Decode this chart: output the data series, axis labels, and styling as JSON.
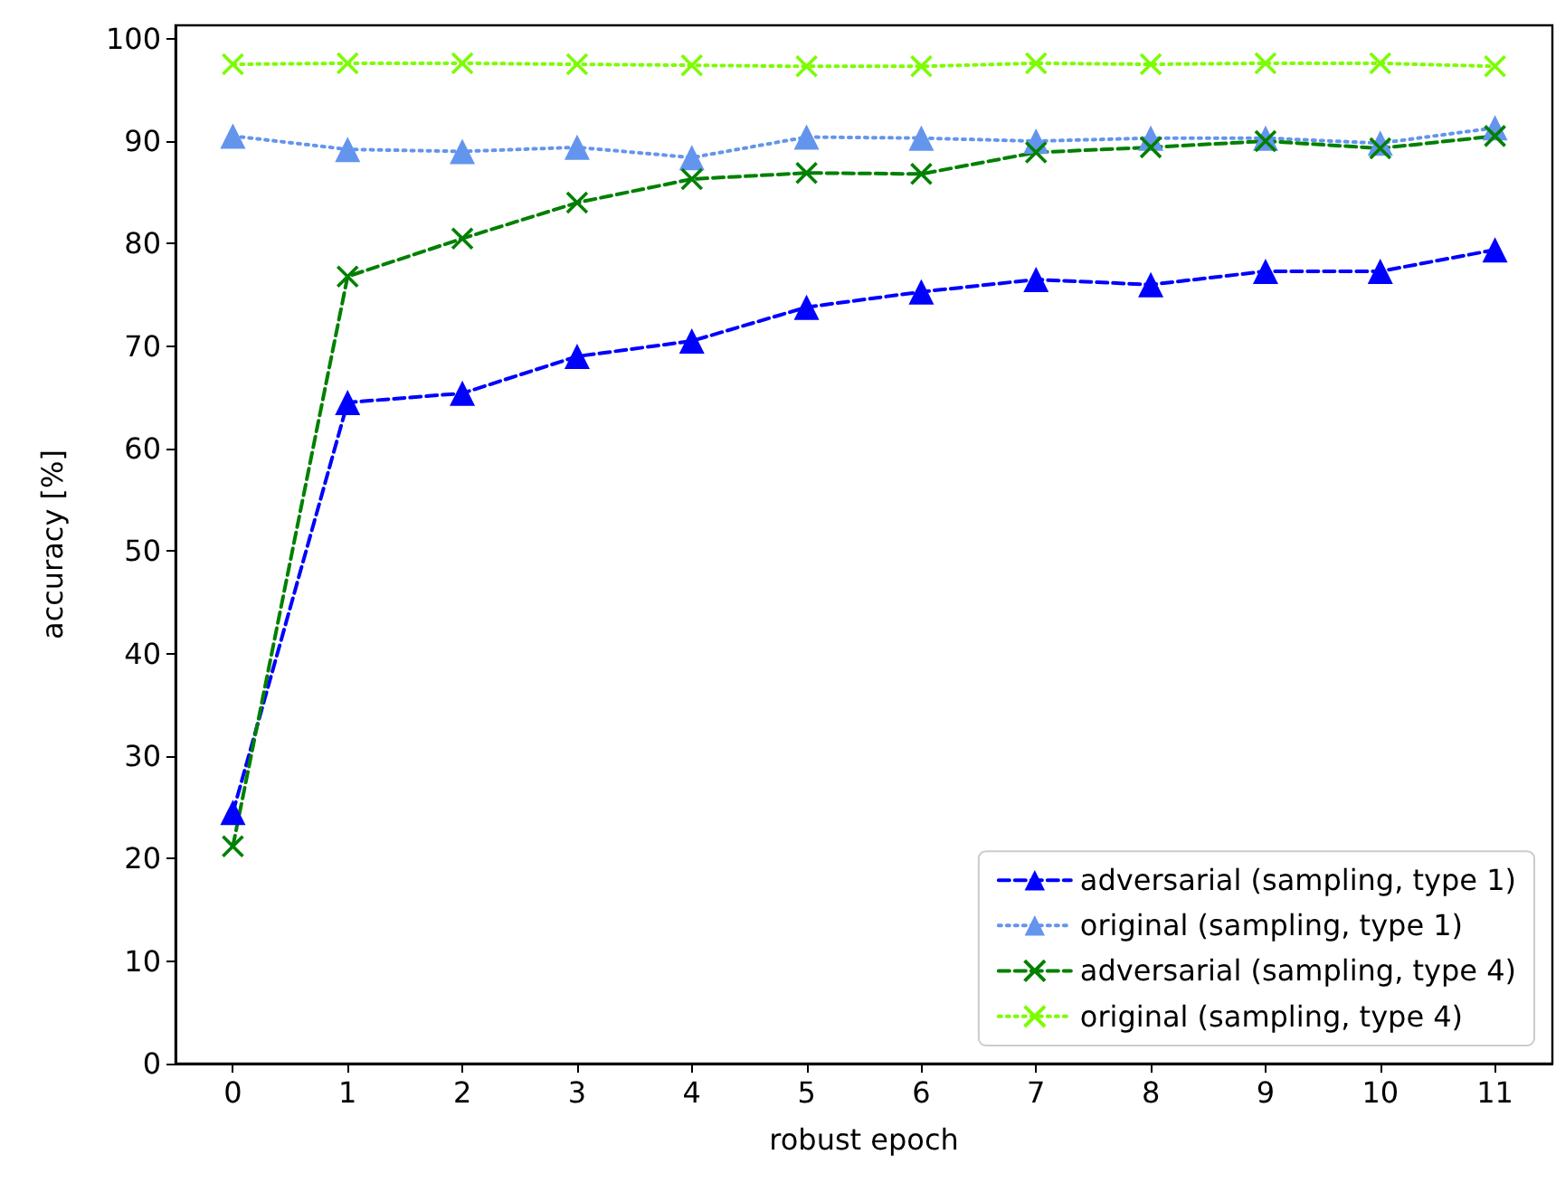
{
  "chart_data": {
    "type": "line",
    "xlabel": "robust epoch",
    "ylabel": "accuracy [%]",
    "categories": [
      "0",
      "1",
      "2",
      "3",
      "4",
      "5",
      "6",
      "7",
      "8",
      "9",
      "10",
      "11"
    ],
    "series": [
      {
        "name": "adversarial (sampling, type 1)",
        "color": "#0000ff",
        "marker": "triangle",
        "line_style": "dashed",
        "values": [
          24.5,
          64.5,
          65.4,
          69,
          70.5,
          73.8,
          75.3,
          76.5,
          76,
          77.3,
          77.3,
          79.4
        ]
      },
      {
        "name": "original (sampling, type 1)",
        "color": "#6495ed",
        "marker": "triangle",
        "line_style": "dotted",
        "values": [
          90.5,
          89.2,
          89,
          89.4,
          88.4,
          90.4,
          90.3,
          90,
          90.3,
          90.3,
          89.8,
          91.3
        ]
      },
      {
        "name": "adversarial (sampling, type 4)",
        "color": "#008000",
        "marker": "cross",
        "line_style": "dashed",
        "values": [
          21.2,
          76.8,
          80.5,
          84,
          86.3,
          86.9,
          86.8,
          88.9,
          89.4,
          90,
          89.3,
          90.5
        ]
      },
      {
        "name": "original (sampling, type 4)",
        "color": "#7cfc00",
        "marker": "cross",
        "line_style": "dotted",
        "values": [
          97.5,
          97.6,
          97.6,
          97.5,
          97.4,
          97.3,
          97.3,
          97.6,
          97.5,
          97.6,
          97.6,
          97.3
        ]
      }
    ],
    "ylim": [
      0,
      101.3
    ],
    "yticks": [
      0,
      10,
      20,
      30,
      40,
      50,
      60,
      70,
      80,
      90,
      100
    ],
    "grid": false,
    "legend": "bottom right"
  }
}
